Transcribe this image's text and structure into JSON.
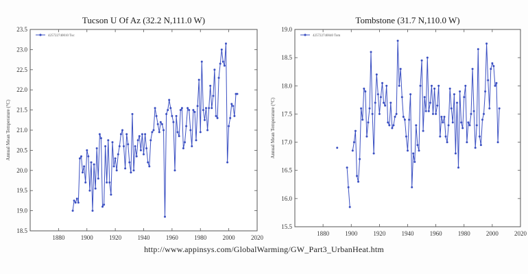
{
  "caption": {
    "url": "http://www.appinsys.com/GlobalWarming/GW_Part3_UrbanHeat.htm"
  },
  "chart_data": [
    {
      "type": "line",
      "title": "Tucson U Of Az (32.2 N,111.0 W)",
      "ylabel": "Annual Mean Temperature (°C)",
      "xlabel": "",
      "xlim": [
        1860,
        2020
      ],
      "ylim": [
        18.5,
        23.5
      ],
      "xticks": [
        "1880",
        "1900",
        "1920",
        "1940",
        "1960",
        "1980",
        "2000",
        "2020"
      ],
      "yticks": [
        "18.5",
        "19.0",
        "19.5",
        "20.0",
        "20.5",
        "21.0",
        "21.5",
        "22.0",
        "22.5",
        "23.0",
        "23.5"
      ],
      "grid": false,
      "legend_position": "top-left",
      "color": "#3a4fc2",
      "series": [
        {
          "name": "425722740010 Tuc",
          "x": [
            1890,
            1891,
            1892,
            1893,
            1894,
            1895,
            1896,
            1897,
            1898,
            1899,
            1900,
            1901,
            1902,
            1903,
            1904,
            1905,
            1906,
            1907,
            1908,
            1909,
            1910,
            1911,
            1912,
            1913,
            1914,
            1915,
            1916,
            1917,
            1918,
            1919,
            1920,
            1921,
            1922,
            1923,
            1924,
            1925,
            1926,
            1927,
            1928,
            1929,
            1930,
            1931,
            1932,
            1933,
            1934,
            1935,
            1936,
            1937,
            1938,
            1939,
            1940,
            1941,
            1942,
            1943,
            1944,
            1945,
            1946,
            1947,
            1948,
            1949,
            1950,
            1951,
            1952,
            1953,
            1954,
            1955,
            1956,
            1957,
            1958,
            1959,
            1960,
            1961,
            1962,
            1963,
            1964,
            1965,
            1966,
            1967,
            1968,
            1969,
            1970,
            1971,
            1972,
            1973,
            1974,
            1975,
            1976,
            1977,
            1978,
            1979,
            1980,
            1981,
            1982,
            1983,
            1984,
            1985,
            1986,
            1987,
            1988,
            1989,
            1990,
            1991,
            1992,
            1993,
            1994,
            1995,
            1996,
            1997,
            1998,
            1999,
            2000,
            2001,
            2002,
            2003,
            2004,
            2005
          ],
          "y": [
            19.0,
            19.25,
            19.2,
            19.3,
            19.2,
            20.3,
            20.35,
            19.95,
            20.1,
            19.7,
            20.5,
            20.35,
            19.5,
            20.2,
            19.0,
            20.15,
            19.55,
            20.55,
            19.8,
            20.9,
            20.8,
            19.1,
            19.15,
            20.6,
            19.7,
            20.75,
            19.7,
            19.4,
            20.7,
            20.1,
            20.3,
            20.0,
            20.4,
            20.6,
            20.9,
            21.0,
            20.6,
            20.05,
            20.9,
            20.65,
            20.2,
            19.95,
            21.4,
            20.0,
            20.6,
            20.35,
            20.75,
            20.85,
            20.5,
            20.9,
            20.4,
            20.9,
            20.55,
            20.2,
            20.1,
            20.75,
            20.95,
            21.0,
            21.55,
            21.35,
            21.15,
            20.95,
            21.2,
            21.15,
            21.0,
            18.85,
            21.4,
            21.5,
            21.75,
            21.55,
            21.35,
            21.2,
            20.0,
            21.35,
            20.95,
            20.85,
            21.5,
            21.55,
            20.55,
            20.7,
            21.1,
            21.55,
            21.5,
            21.0,
            20.6,
            21.5,
            21.45,
            20.75,
            21.6,
            22.25,
            20.95,
            22.7,
            21.5,
            21.25,
            21.55,
            21.0,
            21.55,
            22.1,
            21.55,
            21.85,
            22.5,
            21.35,
            21.3,
            22.3,
            22.65,
            23.0,
            22.7,
            22.6,
            23.15,
            20.2,
            21.1,
            21.3,
            21.65,
            21.6,
            21.35,
            21.9
          ],
          "extra_point": {
            "x": 2006,
            "y": 21.9
          }
        }
      ]
    },
    {
      "type": "line",
      "title": "Tombstone (31.7 N,110.0 W)",
      "ylabel": "Annual Mean Temperature (°C)",
      "xlabel": "",
      "xlim": [
        1860,
        2020
      ],
      "ylim": [
        15.5,
        19.0
      ],
      "xticks": [
        "1880",
        "1900",
        "1920",
        "1940",
        "1960",
        "1980",
        "2000",
        "2020"
      ],
      "yticks": [
        "15.5",
        "16.0",
        "16.5",
        "17.0",
        "17.5",
        "18.0",
        "18.5",
        "19.0"
      ],
      "grid": false,
      "legend_position": "top-left",
      "color": "#3a4fc2",
      "series": [
        {
          "name": "425722740040 Tom",
          "segments": [
            {
              "x": [
                1890
              ],
              "y": [
                16.9
              ]
            },
            {
              "x": [
                1897,
                1898,
                1899
              ],
              "y": [
                16.55,
                16.2,
                15.85
              ]
            },
            {
              "x": [
                1901,
                1902,
                1903,
                1904,
                1905,
                1906,
                1907,
                1908,
                1909,
                1910,
                1911,
                1912,
                1913,
                1914,
                1915,
                1916,
                1917,
                1918,
                1919,
                1920,
                1921,
                1922,
                1923,
                1924,
                1925,
                1926,
                1927,
                1928,
                1929,
                1930,
                1931,
                1932,
                1933,
                1934,
                1935,
                1936,
                1937,
                1938,
                1939,
                1940,
                1941,
                1942,
                1943,
                1944,
                1945,
                1946,
                1947,
                1948,
                1949,
                1950,
                1951,
                1952,
                1953,
                1954,
                1955,
                1956,
                1957,
                1958,
                1959,
                1960,
                1961,
                1962,
                1963,
                1964,
                1965,
                1966,
                1967,
                1968,
                1969,
                1970,
                1971,
                1972,
                1973,
                1974,
                1975,
                1976,
                1977,
                1978,
                1979,
                1980,
                1981,
                1982,
                1983,
                1984,
                1985,
                1986,
                1987,
                1988,
                1989,
                1990,
                1991,
                1992,
                1993,
                1994,
                1995,
                1996,
                1997,
                1998,
                1999,
                2000,
                2001,
                2002,
                2003,
                2004,
                2005
              ],
              "y": [
                16.85,
                17.0,
                17.2,
                16.4,
                16.3,
                16.7,
                17.6,
                17.4,
                17.95,
                17.9,
                17.1,
                17.35,
                17.6,
                18.6,
                17.5,
                16.8,
                17.7,
                18.2,
                17.85,
                17.5,
                17.8,
                18.05,
                17.7,
                17.65,
                18.0,
                17.35,
                17.3,
                17.7,
                17.25,
                17.3,
                17.45,
                17.5,
                18.8,
                18.0,
                18.3,
                17.8,
                17.45,
                17.4,
                17.1,
                16.85,
                17.4,
                17.85,
                16.2,
                16.8,
                16.65,
                17.3,
                16.95,
                16.85,
                18.0,
                18.45,
                17.2,
                17.8,
                17.55,
                18.5,
                17.55,
                17.7,
                18.0,
                17.5,
                17.95,
                17.5,
                17.65,
                18.0,
                17.1,
                17.45,
                17.35,
                17.45,
                17.1,
                17.0,
                17.3,
                17.95,
                17.6,
                17.35,
                17.85,
                16.8,
                17.7,
                16.55,
                17.9,
                17.35,
                17.25,
                17.8,
                18.0,
                17.0,
                17.35,
                17.3,
                17.5,
                18.3,
                17.55,
                16.9,
                17.3,
                18.65,
                17.1,
                16.95,
                17.4,
                17.5,
                17.9,
                18.75,
                18.1,
                17.6,
                18.3,
                18.4,
                18.35,
                18.0,
                18.05,
                17.0,
                17.6
              ]
            }
          ]
        }
      ]
    }
  ]
}
